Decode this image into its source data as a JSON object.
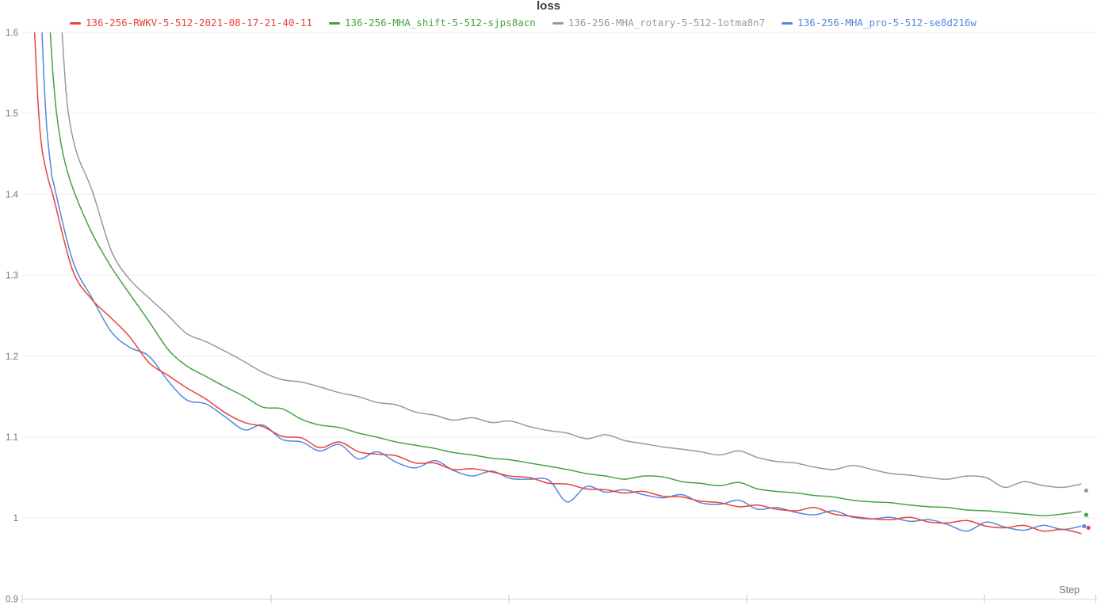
{
  "panel": {
    "title": "loss",
    "x_axis_label": "Step"
  },
  "chart_data": {
    "type": "line",
    "title": "loss",
    "xlabel": "Step",
    "ylabel": "",
    "x_units": "normalized 0-1 (numeric step tick labels not visible in screenshot)",
    "ylim": [
      0.9,
      1.6
    ],
    "y_ticks": [
      "1.6",
      "1.5",
      "1.4",
      "1.3",
      "1.2",
      "1.1",
      "1",
      "0.9"
    ],
    "y_tick_values": [
      1.6,
      1.5,
      1.4,
      1.3,
      1.2,
      1.1,
      1.0,
      0.9
    ],
    "x_tick_positions": [
      0.0,
      0.2316,
      0.4528,
      0.6741,
      0.8953,
      0.999
    ],
    "grid": "horizontal",
    "legend_position": "top",
    "series": [
      {
        "name": "136-256-MHA_rotary-5-512-1otma8n7",
        "color": "#999999",
        "end_dot": {
          "t": 0.99,
          "value": 1.034
        },
        "points": [
          [
            0.035,
            1.65
          ],
          [
            0.039,
            1.56
          ],
          [
            0.043,
            1.5
          ],
          [
            0.051,
            1.45
          ],
          [
            0.065,
            1.405
          ],
          [
            0.083,
            1.33
          ],
          [
            0.1,
            1.295
          ],
          [
            0.118,
            1.272
          ],
          [
            0.136,
            1.25
          ],
          [
            0.153,
            1.228
          ],
          [
            0.171,
            1.218
          ],
          [
            0.189,
            1.206
          ],
          [
            0.207,
            1.193
          ],
          [
            0.224,
            1.18
          ],
          [
            0.242,
            1.171
          ],
          [
            0.26,
            1.168
          ],
          [
            0.277,
            1.162
          ],
          [
            0.295,
            1.155
          ],
          [
            0.313,
            1.15
          ],
          [
            0.33,
            1.143
          ],
          [
            0.348,
            1.14
          ],
          [
            0.366,
            1.131
          ],
          [
            0.384,
            1.127
          ],
          [
            0.401,
            1.121
          ],
          [
            0.419,
            1.124
          ],
          [
            0.437,
            1.118
          ],
          [
            0.454,
            1.12
          ],
          [
            0.472,
            1.113
          ],
          [
            0.49,
            1.108
          ],
          [
            0.507,
            1.105
          ],
          [
            0.525,
            1.098
          ],
          [
            0.543,
            1.103
          ],
          [
            0.56,
            1.096
          ],
          [
            0.578,
            1.092
          ],
          [
            0.596,
            1.088
          ],
          [
            0.614,
            1.085
          ],
          [
            0.631,
            1.082
          ],
          [
            0.649,
            1.078
          ],
          [
            0.667,
            1.083
          ],
          [
            0.684,
            1.075
          ],
          [
            0.702,
            1.07
          ],
          [
            0.72,
            1.068
          ],
          [
            0.737,
            1.063
          ],
          [
            0.755,
            1.06
          ],
          [
            0.773,
            1.065
          ],
          [
            0.791,
            1.06
          ],
          [
            0.808,
            1.055
          ],
          [
            0.826,
            1.053
          ],
          [
            0.844,
            1.05
          ],
          [
            0.861,
            1.048
          ],
          [
            0.879,
            1.052
          ],
          [
            0.897,
            1.05
          ],
          [
            0.914,
            1.038
          ],
          [
            0.932,
            1.045
          ],
          [
            0.95,
            1.04
          ],
          [
            0.968,
            1.038
          ],
          [
            0.985,
            1.042
          ]
        ]
      },
      {
        "name": "136-256-MHA_shift-5-512-sjps8acn",
        "color": "#44a340",
        "end_dot": {
          "t": 0.99,
          "value": 1.004
        },
        "points": [
          [
            0.024,
            1.65
          ],
          [
            0.028,
            1.56
          ],
          [
            0.032,
            1.5
          ],
          [
            0.038,
            1.45
          ],
          [
            0.047,
            1.408
          ],
          [
            0.065,
            1.352
          ],
          [
            0.083,
            1.31
          ],
          [
            0.1,
            1.277
          ],
          [
            0.118,
            1.243
          ],
          [
            0.136,
            1.208
          ],
          [
            0.153,
            1.188
          ],
          [
            0.171,
            1.175
          ],
          [
            0.189,
            1.162
          ],
          [
            0.207,
            1.15
          ],
          [
            0.224,
            1.137
          ],
          [
            0.242,
            1.135
          ],
          [
            0.26,
            1.122
          ],
          [
            0.277,
            1.115
          ],
          [
            0.295,
            1.112
          ],
          [
            0.313,
            1.105
          ],
          [
            0.33,
            1.1
          ],
          [
            0.348,
            1.094
          ],
          [
            0.366,
            1.09
          ],
          [
            0.384,
            1.086
          ],
          [
            0.401,
            1.081
          ],
          [
            0.419,
            1.078
          ],
          [
            0.437,
            1.074
          ],
          [
            0.454,
            1.072
          ],
          [
            0.472,
            1.068
          ],
          [
            0.49,
            1.064
          ],
          [
            0.507,
            1.06
          ],
          [
            0.525,
            1.055
          ],
          [
            0.543,
            1.052
          ],
          [
            0.56,
            1.048
          ],
          [
            0.578,
            1.052
          ],
          [
            0.596,
            1.051
          ],
          [
            0.614,
            1.045
          ],
          [
            0.631,
            1.043
          ],
          [
            0.649,
            1.04
          ],
          [
            0.667,
            1.044
          ],
          [
            0.684,
            1.036
          ],
          [
            0.702,
            1.033
          ],
          [
            0.72,
            1.031
          ],
          [
            0.737,
            1.028
          ],
          [
            0.755,
            1.026
          ],
          [
            0.773,
            1.022
          ],
          [
            0.791,
            1.02
          ],
          [
            0.808,
            1.019
          ],
          [
            0.826,
            1.016
          ],
          [
            0.844,
            1.014
          ],
          [
            0.861,
            1.013
          ],
          [
            0.879,
            1.01
          ],
          [
            0.897,
            1.009
          ],
          [
            0.914,
            1.007
          ],
          [
            0.932,
            1.005
          ],
          [
            0.95,
            1.003
          ],
          [
            0.968,
            1.005
          ],
          [
            0.985,
            1.008
          ]
        ]
      },
      {
        "name": "136-256-MHA_pro-5-512-se8d216w",
        "color": "#5387dd",
        "end_dot": {
          "t": 0.988,
          "value": 0.99
        },
        "points": [
          [
            0.017,
            1.65
          ],
          [
            0.02,
            1.55
          ],
          [
            0.023,
            1.48
          ],
          [
            0.027,
            1.43
          ],
          [
            0.029,
            1.415
          ],
          [
            0.047,
            1.318
          ],
          [
            0.065,
            1.272
          ],
          [
            0.083,
            1.23
          ],
          [
            0.1,
            1.211
          ],
          [
            0.118,
            1.2
          ],
          [
            0.136,
            1.169
          ],
          [
            0.153,
            1.146
          ],
          [
            0.171,
            1.141
          ],
          [
            0.189,
            1.125
          ],
          [
            0.207,
            1.109
          ],
          [
            0.224,
            1.115
          ],
          [
            0.242,
            1.097
          ],
          [
            0.26,
            1.094
          ],
          [
            0.277,
            1.083
          ],
          [
            0.295,
            1.091
          ],
          [
            0.313,
            1.073
          ],
          [
            0.33,
            1.082
          ],
          [
            0.348,
            1.069
          ],
          [
            0.366,
            1.062
          ],
          [
            0.384,
            1.071
          ],
          [
            0.401,
            1.059
          ],
          [
            0.419,
            1.052
          ],
          [
            0.437,
            1.058
          ],
          [
            0.454,
            1.049
          ],
          [
            0.472,
            1.048
          ],
          [
            0.49,
            1.047
          ],
          [
            0.507,
            1.02
          ],
          [
            0.525,
            1.039
          ],
          [
            0.543,
            1.032
          ],
          [
            0.56,
            1.035
          ],
          [
            0.578,
            1.029
          ],
          [
            0.596,
            1.025
          ],
          [
            0.614,
            1.029
          ],
          [
            0.631,
            1.019
          ],
          [
            0.649,
            1.017
          ],
          [
            0.667,
            1.022
          ],
          [
            0.684,
            1.011
          ],
          [
            0.702,
            1.013
          ],
          [
            0.72,
            1.007
          ],
          [
            0.737,
            1.004
          ],
          [
            0.755,
            1.009
          ],
          [
            0.773,
            1.001
          ],
          [
            0.791,
            0.999
          ],
          [
            0.808,
            1.001
          ],
          [
            0.826,
            0.996
          ],
          [
            0.844,
            0.998
          ],
          [
            0.861,
            0.992
          ],
          [
            0.879,
            0.984
          ],
          [
            0.897,
            0.995
          ],
          [
            0.914,
            0.989
          ],
          [
            0.932,
            0.985
          ],
          [
            0.95,
            0.991
          ],
          [
            0.968,
            0.986
          ],
          [
            0.985,
            0.99
          ]
        ]
      },
      {
        "name": "136-256-RWKV-5-512-2021-08-17-21-40-11",
        "color": "#e8433c",
        "end_dot": {
          "t": 0.992,
          "value": 0.988
        },
        "points": [
          [
            0.01,
            1.65
          ],
          [
            0.014,
            1.53
          ],
          [
            0.018,
            1.46
          ],
          [
            0.024,
            1.42
          ],
          [
            0.029,
            1.397
          ],
          [
            0.047,
            1.306
          ],
          [
            0.065,
            1.27
          ],
          [
            0.083,
            1.247
          ],
          [
            0.1,
            1.224
          ],
          [
            0.118,
            1.192
          ],
          [
            0.136,
            1.176
          ],
          [
            0.153,
            1.161
          ],
          [
            0.171,
            1.147
          ],
          [
            0.189,
            1.13
          ],
          [
            0.207,
            1.118
          ],
          [
            0.224,
            1.113
          ],
          [
            0.242,
            1.101
          ],
          [
            0.26,
            1.099
          ],
          [
            0.277,
            1.087
          ],
          [
            0.295,
            1.094
          ],
          [
            0.313,
            1.082
          ],
          [
            0.33,
            1.079
          ],
          [
            0.348,
            1.077
          ],
          [
            0.366,
            1.068
          ],
          [
            0.384,
            1.068
          ],
          [
            0.401,
            1.06
          ],
          [
            0.419,
            1.061
          ],
          [
            0.437,
            1.057
          ],
          [
            0.454,
            1.052
          ],
          [
            0.472,
            1.05
          ],
          [
            0.49,
            1.043
          ],
          [
            0.507,
            1.042
          ],
          [
            0.525,
            1.036
          ],
          [
            0.543,
            1.035
          ],
          [
            0.56,
            1.031
          ],
          [
            0.578,
            1.033
          ],
          [
            0.596,
            1.027
          ],
          [
            0.614,
            1.026
          ],
          [
            0.631,
            1.021
          ],
          [
            0.649,
            1.019
          ],
          [
            0.667,
            1.014
          ],
          [
            0.684,
            1.016
          ],
          [
            0.702,
            1.011
          ],
          [
            0.72,
            1.009
          ],
          [
            0.737,
            1.013
          ],
          [
            0.755,
            1.005
          ],
          [
            0.773,
            1.002
          ],
          [
            0.791,
            0.999
          ],
          [
            0.808,
            0.998
          ],
          [
            0.826,
            1.001
          ],
          [
            0.844,
            0.995
          ],
          [
            0.861,
            0.994
          ],
          [
            0.879,
            0.997
          ],
          [
            0.897,
            0.99
          ],
          [
            0.914,
            0.988
          ],
          [
            0.932,
            0.991
          ],
          [
            0.95,
            0.984
          ],
          [
            0.968,
            0.986
          ],
          [
            0.985,
            0.981
          ]
        ]
      }
    ],
    "legend_order": [
      3,
      1,
      0,
      2
    ],
    "colors": {
      "grid": "#eeeef1",
      "axis": "#d9d9df",
      "tick": "#c7c7cf",
      "tick_label": "#73737e",
      "title": "#3d3d3d",
      "step_label": "#72727d"
    }
  }
}
